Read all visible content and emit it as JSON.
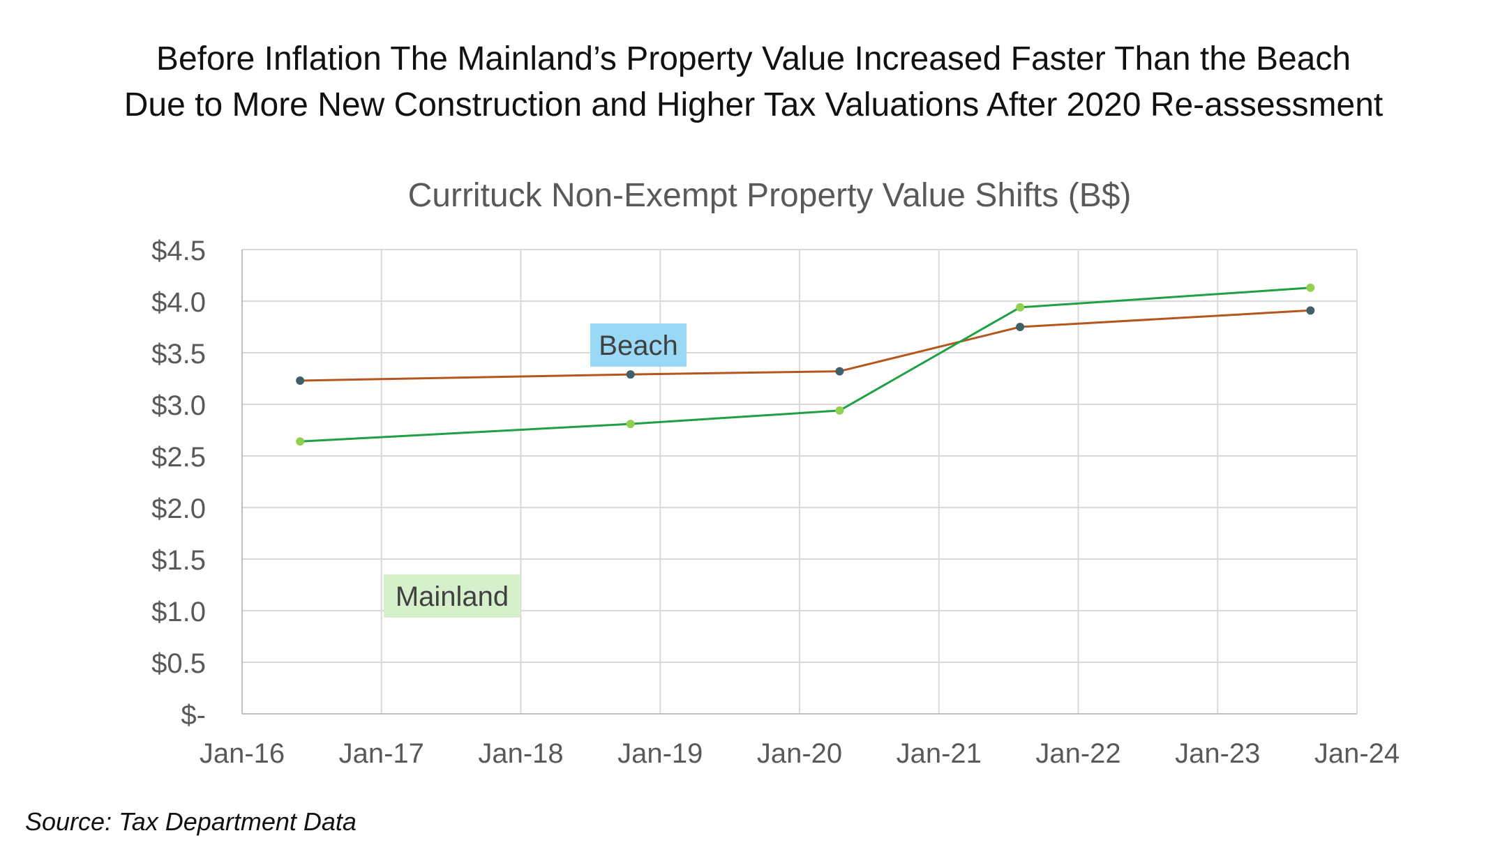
{
  "headline": {
    "line1": "Before Inflation The Mainland’s Property Value Increased Faster Than the Beach",
    "line2": "Due to More New Construction and Higher Tax Valuations After 2020 Re-assessment"
  },
  "source": "Source:  Tax Department Data",
  "chart_data": {
    "type": "line",
    "title": "Currituck Non-Exempt Property Value Shifts (B$)",
    "xlabel": "",
    "ylabel": "",
    "x_ticks": [
      "Jan-16",
      "Jan-17",
      "Jan-18",
      "Jan-19",
      "Jan-20",
      "Jan-21",
      "Jan-22",
      "Jan-23",
      "Jan-24"
    ],
    "xlim": [
      "2016-01-01",
      "2024-01-01"
    ],
    "ylim": [
      0,
      4.5
    ],
    "y_ticks": [
      {
        "value": 0,
        "label": "$-"
      },
      {
        "value": 0.5,
        "label": "$0.5"
      },
      {
        "value": 1.0,
        "label": "$1.0"
      },
      {
        "value": 1.5,
        "label": "$1.5"
      },
      {
        "value": 2.0,
        "label": "$2.0"
      },
      {
        "value": 2.5,
        "label": "$2.5"
      },
      {
        "value": 3.0,
        "label": "$3.0"
      },
      {
        "value": 3.5,
        "label": "$3.5"
      },
      {
        "value": 4.0,
        "label": "$4.0"
      },
      {
        "value": 4.5,
        "label": "$4.5"
      }
    ],
    "grid": true,
    "series": [
      {
        "name": "Beach",
        "line_color": "#b5561e",
        "marker_color": "#3f5f6b",
        "label_bg": "#99d9f5",
        "points": [
          {
            "x": "2016-06-01",
            "y": 3.23
          },
          {
            "x": "2018-10-15",
            "y": 3.29
          },
          {
            "x": "2020-04-15",
            "y": 3.32
          },
          {
            "x": "2021-08-01",
            "y": 3.75
          },
          {
            "x": "2023-09-01",
            "y": 3.91
          }
        ]
      },
      {
        "name": "Mainland",
        "line_color": "#1fa045",
        "marker_color": "#92d050",
        "label_bg": "#d6f0cc",
        "points": [
          {
            "x": "2016-06-01",
            "y": 2.64
          },
          {
            "x": "2018-10-15",
            "y": 2.81
          },
          {
            "x": "2020-04-15",
            "y": 2.94
          },
          {
            "x": "2021-08-01",
            "y": 3.94
          },
          {
            "x": "2023-09-01",
            "y": 4.13
          }
        ]
      }
    ]
  }
}
